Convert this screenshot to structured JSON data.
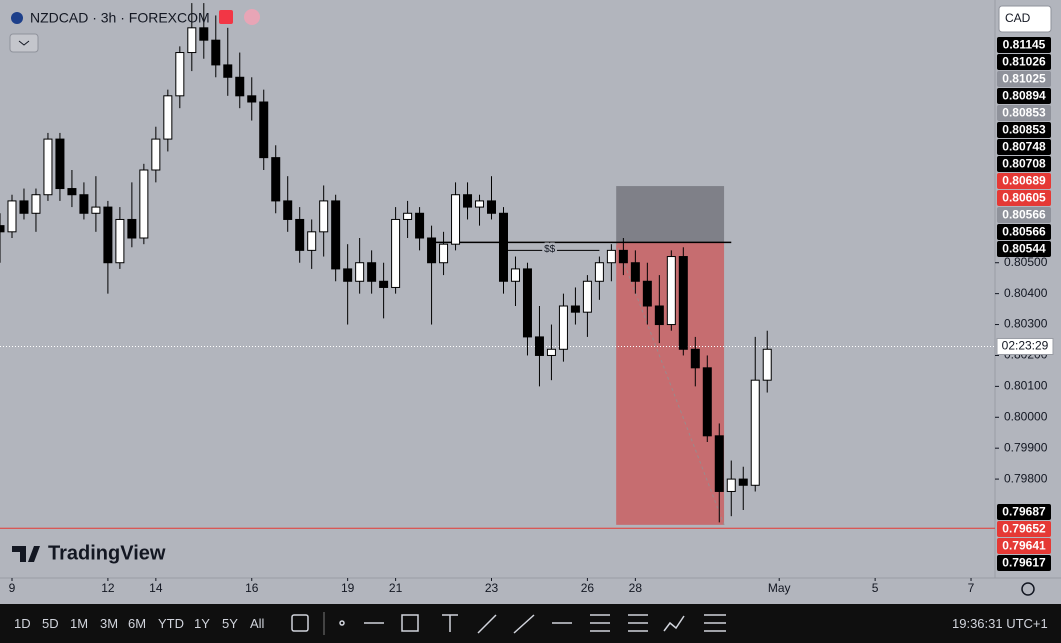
{
  "header": {
    "symbol": "NZDCAD · 3h · FOREXCOM",
    "currency": "CAD",
    "logo": "TradingView"
  },
  "chart_data": {
    "type": "candlestick",
    "candles": [
      [
        0.8062,
        0.8066,
        0.805,
        0.806
      ],
      [
        0.806,
        0.8072,
        0.8058,
        0.807
      ],
      [
        0.807,
        0.8074,
        0.8064,
        0.8066
      ],
      [
        0.8066,
        0.8074,
        0.806,
        0.8072
      ],
      [
        0.8072,
        0.8092,
        0.807,
        0.809
      ],
      [
        0.809,
        0.8092,
        0.807,
        0.8074
      ],
      [
        0.8074,
        0.808,
        0.8068,
        0.8072
      ],
      [
        0.8072,
        0.8076,
        0.8064,
        0.8066
      ],
      [
        0.8066,
        0.8078,
        0.806,
        0.8068
      ],
      [
        0.8068,
        0.807,
        0.804,
        0.805
      ],
      [
        0.805,
        0.8068,
        0.8048,
        0.8064
      ],
      [
        0.8064,
        0.8076,
        0.8055,
        0.8058
      ],
      [
        0.8058,
        0.8082,
        0.8056,
        0.808
      ],
      [
        0.808,
        0.8094,
        0.8076,
        0.809
      ],
      [
        0.809,
        0.8106,
        0.8086,
        0.8104
      ],
      [
        0.8104,
        0.812,
        0.81,
        0.8118
      ],
      [
        0.8118,
        0.8134,
        0.8112,
        0.8126
      ],
      [
        0.8126,
        0.8134,
        0.8116,
        0.8122
      ],
      [
        0.8122,
        0.813,
        0.811,
        0.8114
      ],
      [
        0.8114,
        0.8126,
        0.8104,
        0.811
      ],
      [
        0.811,
        0.8118,
        0.81,
        0.8104
      ],
      [
        0.8104,
        0.811,
        0.8096,
        0.8102
      ],
      [
        0.8102,
        0.8106,
        0.808,
        0.8084
      ],
      [
        0.8084,
        0.8088,
        0.8066,
        0.807
      ],
      [
        0.807,
        0.8078,
        0.806,
        0.8064
      ],
      [
        0.8064,
        0.8068,
        0.805,
        0.8054
      ],
      [
        0.8054,
        0.8064,
        0.8048,
        0.806
      ],
      [
        0.806,
        0.8075,
        0.8052,
        0.807
      ],
      [
        0.807,
        0.8072,
        0.8044,
        0.8048
      ],
      [
        0.8048,
        0.8056,
        0.803,
        0.8044
      ],
      [
        0.8044,
        0.8058,
        0.804,
        0.805
      ],
      [
        0.805,
        0.8054,
        0.804,
        0.8044
      ],
      [
        0.8044,
        0.805,
        0.8032,
        0.8042
      ],
      [
        0.8042,
        0.8068,
        0.804,
        0.8064
      ],
      [
        0.8064,
        0.807,
        0.8058,
        0.8066
      ],
      [
        0.8066,
        0.8068,
        0.8054,
        0.8058
      ],
      [
        0.8058,
        0.8062,
        0.803,
        0.805
      ],
      [
        0.805,
        0.806,
        0.8046,
        0.8056
      ],
      [
        0.8056,
        0.8076,
        0.8054,
        0.8072
      ],
      [
        0.8072,
        0.8076,
        0.8064,
        0.8068
      ],
      [
        0.8068,
        0.8072,
        0.8062,
        0.807
      ],
      [
        0.807,
        0.8078,
        0.8064,
        0.8066
      ],
      [
        0.8066,
        0.8068,
        0.804,
        0.8044
      ],
      [
        0.8044,
        0.8052,
        0.8036,
        0.8048
      ],
      [
        0.8048,
        0.805,
        0.802,
        0.8026
      ],
      [
        0.8026,
        0.8036,
        0.801,
        0.802
      ],
      [
        0.802,
        0.803,
        0.8012,
        0.8022
      ],
      [
        0.8022,
        0.804,
        0.8018,
        0.8036
      ],
      [
        0.8036,
        0.8042,
        0.803,
        0.8034
      ],
      [
        0.8034,
        0.8046,
        0.8026,
        0.8044
      ],
      [
        0.8044,
        0.8052,
        0.8038,
        0.805
      ],
      [
        0.805,
        0.8056,
        0.8044,
        0.8054
      ],
      [
        0.8054,
        0.8058,
        0.8046,
        0.805
      ],
      [
        0.805,
        0.8054,
        0.804,
        0.8044
      ],
      [
        0.8044,
        0.805,
        0.803,
        0.8036
      ],
      [
        0.8036,
        0.8046,
        0.8024,
        0.803
      ],
      [
        0.803,
        0.8054,
        0.8028,
        0.8052
      ],
      [
        0.8052,
        0.8055,
        0.802,
        0.8022
      ],
      [
        0.8022,
        0.8026,
        0.801,
        0.8016
      ],
      [
        0.8016,
        0.802,
        0.7992,
        0.7994
      ],
      [
        0.7994,
        0.7998,
        0.7966,
        0.7976
      ],
      [
        0.7976,
        0.7986,
        0.7968,
        0.798
      ],
      [
        0.798,
        0.7984,
        0.797,
        0.7978
      ],
      [
        0.7978,
        0.8026,
        0.7976,
        0.8012
      ],
      [
        0.8012,
        0.8028,
        0.8008,
        0.8022
      ]
    ],
    "up_color": "#ffffff",
    "down_color": "#000000",
    "xlim": [
      0,
      83
    ],
    "xticks": [
      {
        "value": 1,
        "label": "9"
      },
      {
        "value": 9,
        "label": "12"
      },
      {
        "value": 13,
        "label": "14"
      },
      {
        "value": 21,
        "label": "16"
      },
      {
        "value": 29,
        "label": "19"
      },
      {
        "value": 33,
        "label": "21"
      },
      {
        "value": 41,
        "label": "23"
      },
      {
        "value": 49,
        "label": "26"
      },
      {
        "value": 53,
        "label": "28"
      },
      {
        "value": 65,
        "label": "May"
      },
      {
        "value": 73,
        "label": "5"
      },
      {
        "value": 81,
        "label": "7"
      }
    ],
    "ylim": [
      0.7948,
      0.8135
    ],
    "yticks": [
      {
        "value": 0.805,
        "label": "0.80500"
      },
      {
        "value": 0.804,
        "label": "0.80400"
      },
      {
        "value": 0.803,
        "label": "0.80300"
      },
      {
        "value": 0.802,
        "label": "0.80200"
      },
      {
        "value": 0.801,
        "label": "0.80100"
      },
      {
        "value": 0.8,
        "label": "0.80000"
      },
      {
        "value": 0.799,
        "label": "0.79900"
      },
      {
        "value": 0.798,
        "label": "0.79800"
      }
    ],
    "position": {
      "x": [
        51.4,
        60.4
      ],
      "stop": 0.80748,
      "entry": 0.80566,
      "target": 0.79652,
      "stop_color": "#7f8088",
      "target_color": "#c66d70"
    },
    "level_line": {
      "x": [
        36,
        61
      ],
      "price": 0.80566,
      "label": "$$"
    },
    "liquidity_line": {
      "x": [
        41.7,
        50
      ],
      "price": 0.8054
    },
    "support_line": {
      "price": 0.79641,
      "color": "#e53935"
    },
    "current_price": 0.80229,
    "countdown": "02:23:29",
    "price_badges": [
      {
        "value": 0.81145,
        "color": "#000000"
      },
      {
        "value": 0.81026,
        "color": "#000000"
      },
      {
        "value": 0.81025,
        "color": "#8f929b"
      },
      {
        "value": 0.80894,
        "color": "#000000"
      },
      {
        "value": 0.80853,
        "color": "#8f929b"
      },
      {
        "value": 0.80853,
        "color": "#000000"
      },
      {
        "value": 0.80748,
        "color": "#000000"
      },
      {
        "value": 0.80708,
        "color": "#000000"
      },
      {
        "value": 0.80689,
        "color": "#e53935"
      },
      {
        "value": 0.80605,
        "color": "#e53935"
      },
      {
        "value": 0.80566,
        "color": "#8f929b"
      },
      {
        "value": 0.80566,
        "color": "#000000"
      },
      {
        "value": 0.80544,
        "color": "#000000"
      },
      {
        "value": 0.79687,
        "color": "#000000"
      },
      {
        "value": 0.79652,
        "color": "#e53935"
      },
      {
        "value": 0.79641,
        "color": "#e53935"
      },
      {
        "value": 0.79617,
        "color": "#000000"
      }
    ]
  },
  "toolbar": {
    "ranges": [
      "1D",
      "5D",
      "1M",
      "3M",
      "6M",
      "YTD",
      "1Y",
      "5Y",
      "All"
    ],
    "clock": "19:36:31 UTC+1"
  }
}
